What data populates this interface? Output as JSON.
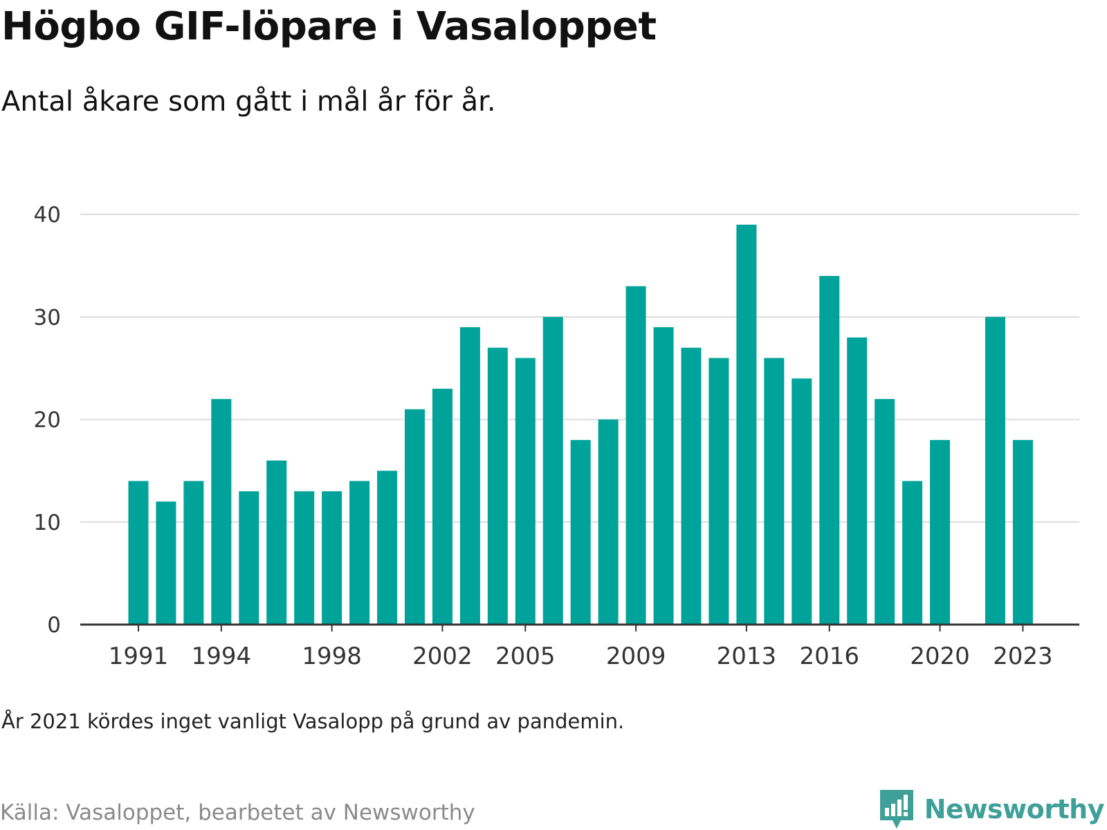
{
  "title": "Högbo GIF-löpare i Vasaloppet",
  "subtitle": "Antal åkare som gått i mål år för år.",
  "note": "År 2021 kördes inget vanligt Vasalopp på grund av pandemin.",
  "source": "Källa: Vasaloppet, bearbetet av Newsworthy",
  "brand": {
    "name": "Newsworthy",
    "icon": "newsworthy-logo-icon",
    "color": "#3f9f99"
  },
  "chart_data": {
    "type": "bar",
    "title": "Högbo GIF-löpare i Vasaloppet",
    "subtitle": "Antal åkare som gått i mål år för år.",
    "xlabel": "",
    "ylabel": "",
    "ylim": [
      0,
      40
    ],
    "y_ticks": [
      0,
      10,
      20,
      30,
      40
    ],
    "x_ticks": [
      1991,
      1994,
      1998,
      2002,
      2005,
      2009,
      2013,
      2016,
      2020,
      2023
    ],
    "grid": true,
    "bar_color": "#00a39a",
    "categories": [
      1991,
      1992,
      1993,
      1994,
      1995,
      1996,
      1997,
      1998,
      1999,
      2000,
      2001,
      2002,
      2003,
      2004,
      2005,
      2006,
      2007,
      2008,
      2009,
      2010,
      2011,
      2012,
      2013,
      2014,
      2015,
      2016,
      2017,
      2018,
      2019,
      2020,
      2021,
      2022,
      2023
    ],
    "values": [
      14,
      12,
      14,
      22,
      13,
      16,
      13,
      13,
      14,
      15,
      21,
      23,
      29,
      27,
      26,
      30,
      18,
      20,
      33,
      29,
      27,
      26,
      39,
      26,
      24,
      34,
      28,
      22,
      14,
      18,
      null,
      30,
      18
    ]
  }
}
